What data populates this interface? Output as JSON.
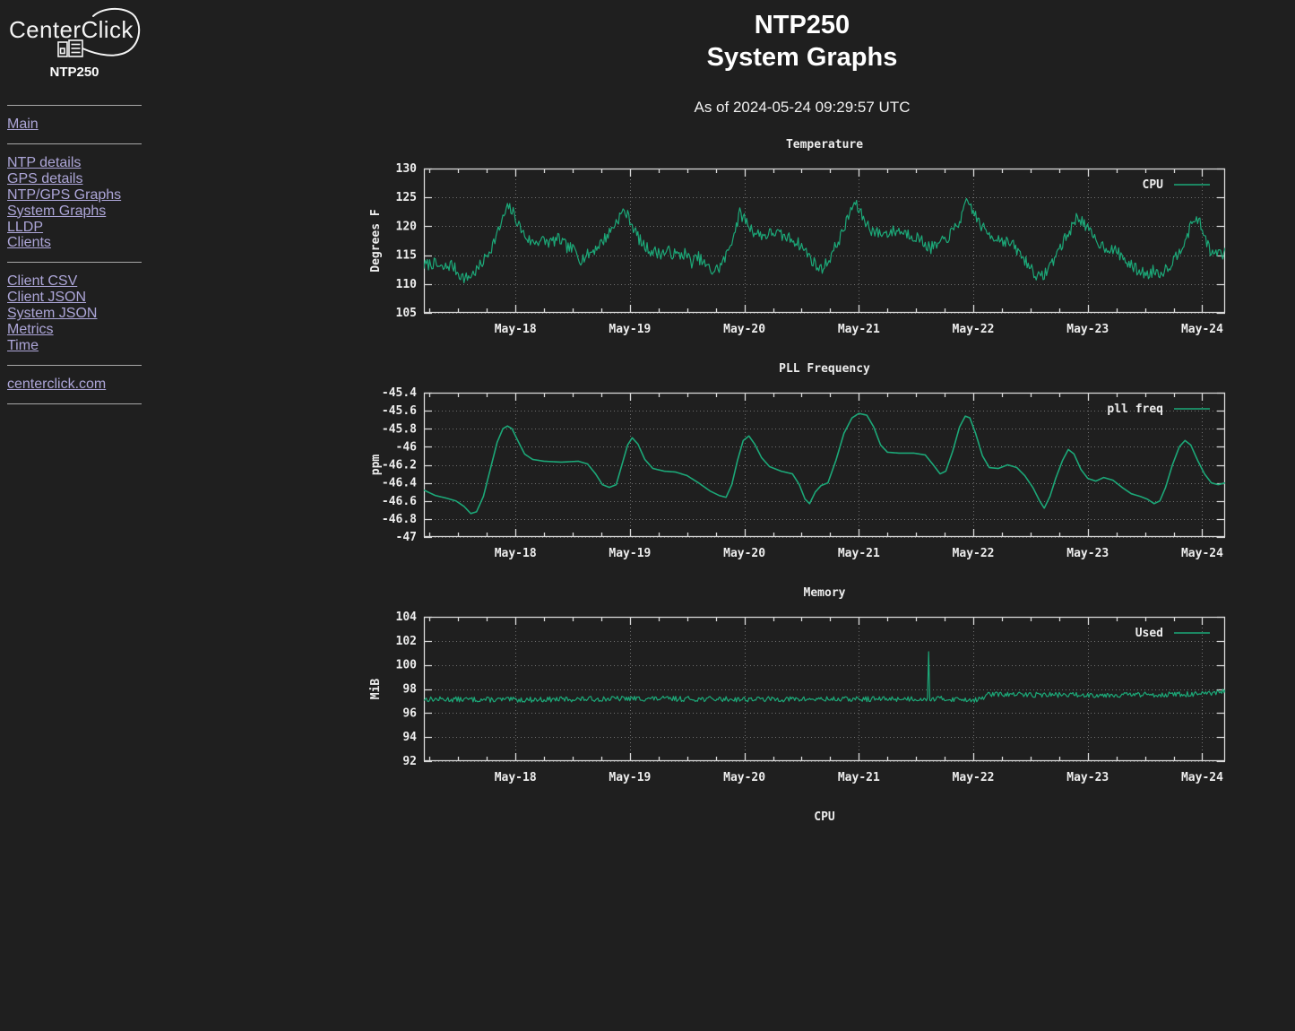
{
  "page": {
    "background": "#1f1f1f"
  },
  "sidebar": {
    "logo": {
      "brand": "CenterClick",
      "model": "NTP250"
    },
    "link_color": "#ada6d8",
    "sections": [
      {
        "links": [
          {
            "label": "Main"
          }
        ]
      },
      {
        "links": [
          {
            "label": "NTP details"
          },
          {
            "label": "GPS details"
          },
          {
            "label": "NTP/GPS Graphs"
          },
          {
            "label": "System Graphs"
          },
          {
            "label": "LLDP"
          },
          {
            "label": "Clients"
          }
        ]
      },
      {
        "links": [
          {
            "label": "Client CSV"
          },
          {
            "label": "Client JSON"
          },
          {
            "label": "System JSON"
          },
          {
            "label": "Metrics"
          },
          {
            "label": "Time"
          }
        ]
      },
      {
        "links": [
          {
            "label": "centerclick.com"
          }
        ]
      }
    ]
  },
  "header": {
    "title_line1": "NTP250",
    "title_line2": "System Graphs",
    "as_of": "As of 2024-05-24 09:29:57 UTC"
  },
  "chart_style": {
    "text_color": "#ededed",
    "border_color": "#d8d8d8",
    "grid_color": "#6f6f6f",
    "series_color": "#1ca878",
    "plot_bg": "#1f1f1f"
  },
  "chart_data": [
    {
      "type": "line",
      "title": "Temperature",
      "ylabel": "Degrees F",
      "legend": "CPU",
      "xlim": [
        17.2,
        24.2
      ],
      "ylim": [
        105,
        130
      ],
      "xticks": [
        {
          "t": 18,
          "label": "May-18"
        },
        {
          "t": 19,
          "label": "May-19"
        },
        {
          "t": 20,
          "label": "May-20"
        },
        {
          "t": 21,
          "label": "May-21"
        },
        {
          "t": 22,
          "label": "May-22"
        },
        {
          "t": 23,
          "label": "May-23"
        },
        {
          "t": 24,
          "label": "May-24"
        }
      ],
      "yticks": [
        {
          "v": 105,
          "label": "105"
        },
        {
          "v": 110,
          "label": "110"
        },
        {
          "v": 115,
          "label": "115"
        },
        {
          "v": 120,
          "label": "120"
        },
        {
          "v": 125,
          "label": "125"
        },
        {
          "v": 130,
          "label": "130"
        }
      ],
      "minor_x_step": 0.25,
      "line_width": 1.2,
      "noise_amp": 1.05,
      "noise_seed": 7,
      "keypoints": [
        [
          17.2,
          113.2
        ],
        [
          17.28,
          113.6
        ],
        [
          17.36,
          112.6
        ],
        [
          17.44,
          113.4
        ],
        [
          17.5,
          111.9
        ],
        [
          17.56,
          110.9
        ],
        [
          17.62,
          111.6
        ],
        [
          17.68,
          112.8
        ],
        [
          17.74,
          114.6
        ],
        [
          17.8,
          116.8
        ],
        [
          17.86,
          119.6
        ],
        [
          17.9,
          121.8
        ],
        [
          17.94,
          123.4
        ],
        [
          17.98,
          122.3
        ],
        [
          18.03,
          120.2
        ],
        [
          18.08,
          118.4
        ],
        [
          18.14,
          117.2
        ],
        [
          18.22,
          117.6
        ],
        [
          18.3,
          117.2
        ],
        [
          18.38,
          117.8
        ],
        [
          18.45,
          116.4
        ],
        [
          18.52,
          115.8
        ],
        [
          18.57,
          114.3
        ],
        [
          18.63,
          115.0
        ],
        [
          18.7,
          116.2
        ],
        [
          18.77,
          117.6
        ],
        [
          18.83,
          119.2
        ],
        [
          18.88,
          120.8
        ],
        [
          18.92,
          122.0
        ],
        [
          18.95,
          122.7
        ],
        [
          19.0,
          121.2
        ],
        [
          19.05,
          118.9
        ],
        [
          19.11,
          116.8
        ],
        [
          19.18,
          115.8
        ],
        [
          19.26,
          115.3
        ],
        [
          19.34,
          115.6
        ],
        [
          19.42,
          114.9
        ],
        [
          19.48,
          115.3
        ],
        [
          19.54,
          113.8
        ],
        [
          19.6,
          114.6
        ],
        [
          19.66,
          113.2
        ],
        [
          19.72,
          112.2
        ],
        [
          19.78,
          112.8
        ],
        [
          19.84,
          114.8
        ],
        [
          19.89,
          117.6
        ],
        [
          19.93,
          120.2
        ],
        [
          19.96,
          122.2
        ],
        [
          20.0,
          121.4
        ],
        [
          20.05,
          119.8
        ],
        [
          20.1,
          118.8
        ],
        [
          20.18,
          118.4
        ],
        [
          20.26,
          119.0
        ],
        [
          20.34,
          118.2
        ],
        [
          20.42,
          117.8
        ],
        [
          20.48,
          116.9
        ],
        [
          20.54,
          115.6
        ],
        [
          20.6,
          113.9
        ],
        [
          20.66,
          112.5
        ],
        [
          20.72,
          113.6
        ],
        [
          20.78,
          115.8
        ],
        [
          20.84,
          118.2
        ],
        [
          20.89,
          120.6
        ],
        [
          20.93,
          122.8
        ],
        [
          20.96,
          124.0
        ],
        [
          21.0,
          122.9
        ],
        [
          21.05,
          121.0
        ],
        [
          21.11,
          119.4
        ],
        [
          21.18,
          118.7
        ],
        [
          21.26,
          118.9
        ],
        [
          21.34,
          119.3
        ],
        [
          21.42,
          118.8
        ],
        [
          21.5,
          118.2
        ],
        [
          21.56,
          117.3
        ],
        [
          21.62,
          116.2
        ],
        [
          21.68,
          116.6
        ],
        [
          21.74,
          117.4
        ],
        [
          21.8,
          118.6
        ],
        [
          21.86,
          120.2
        ],
        [
          21.91,
          122.2
        ],
        [
          21.95,
          124.4
        ],
        [
          21.99,
          123.0
        ],
        [
          22.04,
          121.0
        ],
        [
          22.1,
          119.2
        ],
        [
          22.18,
          118.2
        ],
        [
          22.26,
          117.6
        ],
        [
          22.34,
          116.8
        ],
        [
          22.4,
          115.4
        ],
        [
          22.46,
          113.9
        ],
        [
          22.52,
          112.4
        ],
        [
          22.58,
          110.9
        ],
        [
          22.64,
          112.2
        ],
        [
          22.7,
          114.2
        ],
        [
          22.76,
          116.4
        ],
        [
          22.82,
          118.4
        ],
        [
          22.87,
          120.2
        ],
        [
          22.91,
          121.8
        ],
        [
          22.95,
          121.0
        ],
        [
          23.0,
          119.4
        ],
        [
          23.06,
          117.8
        ],
        [
          23.13,
          116.6
        ],
        [
          23.2,
          116.1
        ],
        [
          23.28,
          115.2
        ],
        [
          23.34,
          113.8
        ],
        [
          23.4,
          112.8
        ],
        [
          23.46,
          112.2
        ],
        [
          23.52,
          111.6
        ],
        [
          23.58,
          112.4
        ],
        [
          23.63,
          111.9
        ],
        [
          23.68,
          112.6
        ],
        [
          23.74,
          113.8
        ],
        [
          23.8,
          115.8
        ],
        [
          23.85,
          117.8
        ],
        [
          23.9,
          119.8
        ],
        [
          23.94,
          121.6
        ],
        [
          23.97,
          120.9
        ],
        [
          24.01,
          118.9
        ],
        [
          24.05,
          116.9
        ],
        [
          24.09,
          114.9
        ],
        [
          24.13,
          115.7
        ],
        [
          24.17,
          114.9
        ],
        [
          24.2,
          115.3
        ]
      ]
    },
    {
      "type": "line",
      "title": "PLL Frequency",
      "ylabel": "ppm",
      "legend": "pll freq",
      "xlim": [
        17.2,
        24.2
      ],
      "ylim": [
        -47,
        -45.4
      ],
      "xticks": [
        {
          "t": 18,
          "label": "May-18"
        },
        {
          "t": 19,
          "label": "May-19"
        },
        {
          "t": 20,
          "label": "May-20"
        },
        {
          "t": 21,
          "label": "May-21"
        },
        {
          "t": 22,
          "label": "May-22"
        },
        {
          "t": 23,
          "label": "May-23"
        },
        {
          "t": 24,
          "label": "May-24"
        }
      ],
      "yticks": [
        {
          "v": -47,
          "label": "-47"
        },
        {
          "v": -46.8,
          "label": "-46.8"
        },
        {
          "v": -46.6,
          "label": "-46.6"
        },
        {
          "v": -46.4,
          "label": "-46.4"
        },
        {
          "v": -46.2,
          "label": "-46.2"
        },
        {
          "v": -46,
          "label": "-46"
        },
        {
          "v": -45.8,
          "label": "-45.8"
        },
        {
          "v": -45.6,
          "label": "-45.6"
        },
        {
          "v": -45.4,
          "label": "-45.4"
        }
      ],
      "minor_x_step": 0.25,
      "line_width": 1.6,
      "noise_amp": 0,
      "noise_seed": 3,
      "keypoints": [
        [
          17.2,
          -46.48
        ],
        [
          17.3,
          -46.54
        ],
        [
          17.4,
          -46.57
        ],
        [
          17.48,
          -46.6
        ],
        [
          17.55,
          -46.66
        ],
        [
          17.61,
          -46.74
        ],
        [
          17.66,
          -46.72
        ],
        [
          17.72,
          -46.55
        ],
        [
          17.78,
          -46.25
        ],
        [
          17.84,
          -45.95
        ],
        [
          17.89,
          -45.8
        ],
        [
          17.93,
          -45.77
        ],
        [
          17.97,
          -45.8
        ],
        [
          18.02,
          -45.93
        ],
        [
          18.08,
          -46.08
        ],
        [
          18.15,
          -46.14
        ],
        [
          18.25,
          -46.16
        ],
        [
          18.4,
          -46.17
        ],
        [
          18.55,
          -46.16
        ],
        [
          18.63,
          -46.19
        ],
        [
          18.7,
          -46.3
        ],
        [
          18.76,
          -46.42
        ],
        [
          18.82,
          -46.45
        ],
        [
          18.88,
          -46.42
        ],
        [
          18.93,
          -46.2
        ],
        [
          18.98,
          -45.98
        ],
        [
          19.02,
          -45.9
        ],
        [
          19.07,
          -45.97
        ],
        [
          19.13,
          -46.14
        ],
        [
          19.2,
          -46.24
        ],
        [
          19.3,
          -46.27
        ],
        [
          19.4,
          -46.28
        ],
        [
          19.5,
          -46.32
        ],
        [
          19.6,
          -46.4
        ],
        [
          19.7,
          -46.49
        ],
        [
          19.78,
          -46.54
        ],
        [
          19.84,
          -46.56
        ],
        [
          19.89,
          -46.42
        ],
        [
          19.94,
          -46.15
        ],
        [
          19.99,
          -45.93
        ],
        [
          20.04,
          -45.88
        ],
        [
          20.09,
          -45.97
        ],
        [
          20.15,
          -46.12
        ],
        [
          20.22,
          -46.22
        ],
        [
          20.32,
          -46.27
        ],
        [
          20.42,
          -46.3
        ],
        [
          20.48,
          -46.42
        ],
        [
          20.53,
          -46.58
        ],
        [
          20.57,
          -46.63
        ],
        [
          20.62,
          -46.5
        ],
        [
          20.67,
          -46.43
        ],
        [
          20.73,
          -46.4
        ],
        [
          20.8,
          -46.15
        ],
        [
          20.87,
          -45.85
        ],
        [
          20.94,
          -45.68
        ],
        [
          21.0,
          -45.63
        ],
        [
          21.07,
          -45.65
        ],
        [
          21.13,
          -45.78
        ],
        [
          21.19,
          -45.98
        ],
        [
          21.25,
          -46.06
        ],
        [
          21.35,
          -46.07
        ],
        [
          21.48,
          -46.07
        ],
        [
          21.58,
          -46.09
        ],
        [
          21.65,
          -46.2
        ],
        [
          21.71,
          -46.3
        ],
        [
          21.76,
          -46.27
        ],
        [
          21.82,
          -46.05
        ],
        [
          21.88,
          -45.78
        ],
        [
          21.93,
          -45.66
        ],
        [
          21.97,
          -45.68
        ],
        [
          22.02,
          -45.85
        ],
        [
          22.08,
          -46.1
        ],
        [
          22.14,
          -46.23
        ],
        [
          22.22,
          -46.24
        ],
        [
          22.3,
          -46.2
        ],
        [
          22.38,
          -46.23
        ],
        [
          22.45,
          -46.32
        ],
        [
          22.52,
          -46.45
        ],
        [
          22.58,
          -46.6
        ],
        [
          22.62,
          -46.68
        ],
        [
          22.67,
          -46.55
        ],
        [
          22.72,
          -46.35
        ],
        [
          22.78,
          -46.15
        ],
        [
          22.83,
          -46.03
        ],
        [
          22.88,
          -46.08
        ],
        [
          22.94,
          -46.25
        ],
        [
          23.0,
          -46.35
        ],
        [
          23.07,
          -46.38
        ],
        [
          23.14,
          -46.34
        ],
        [
          23.22,
          -46.37
        ],
        [
          23.3,
          -46.45
        ],
        [
          23.38,
          -46.52
        ],
        [
          23.46,
          -46.55
        ],
        [
          23.52,
          -46.58
        ],
        [
          23.58,
          -46.63
        ],
        [
          23.63,
          -46.6
        ],
        [
          23.68,
          -46.45
        ],
        [
          23.74,
          -46.2
        ],
        [
          23.8,
          -46.0
        ],
        [
          23.85,
          -45.93
        ],
        [
          23.9,
          -45.98
        ],
        [
          23.96,
          -46.15
        ],
        [
          24.02,
          -46.3
        ],
        [
          24.08,
          -46.4
        ],
        [
          24.14,
          -46.42
        ],
        [
          24.2,
          -46.4
        ]
      ]
    },
    {
      "type": "line",
      "title": "Memory",
      "ylabel": "MiB",
      "legend": "Used",
      "xlim": [
        17.2,
        24.2
      ],
      "ylim": [
        92,
        104
      ],
      "xticks": [
        {
          "t": 18,
          "label": "May-18"
        },
        {
          "t": 19,
          "label": "May-19"
        },
        {
          "t": 20,
          "label": "May-20"
        },
        {
          "t": 21,
          "label": "May-21"
        },
        {
          "t": 22,
          "label": "May-22"
        },
        {
          "t": 23,
          "label": "May-23"
        },
        {
          "t": 24,
          "label": "May-24"
        }
      ],
      "yticks": [
        {
          "v": 92,
          "label": "92"
        },
        {
          "v": 94,
          "label": "94"
        },
        {
          "v": 96,
          "label": "96"
        },
        {
          "v": 98,
          "label": "98"
        },
        {
          "v": 100,
          "label": "100"
        },
        {
          "v": 102,
          "label": "102"
        },
        {
          "v": 104,
          "label": "104"
        }
      ],
      "minor_x_step": 0.25,
      "line_width": 1.2,
      "noise_amp": 0.22,
      "noise_seed": 13,
      "keypoints": [
        [
          17.2,
          97.15
        ],
        [
          18.0,
          97.1
        ],
        [
          19.0,
          97.2
        ],
        [
          20.0,
          97.15
        ],
        [
          21.0,
          97.15
        ],
        [
          21.6,
          97.2
        ],
        [
          21.61,
          100.9
        ],
        [
          21.62,
          97.2
        ],
        [
          22.06,
          97.1
        ],
        [
          22.12,
          97.55
        ],
        [
          23.0,
          97.5
        ],
        [
          23.8,
          97.55
        ],
        [
          24.1,
          97.6
        ],
        [
          24.2,
          97.85
        ]
      ]
    },
    {
      "type": "line",
      "title": "CPU",
      "partial": true
    }
  ]
}
